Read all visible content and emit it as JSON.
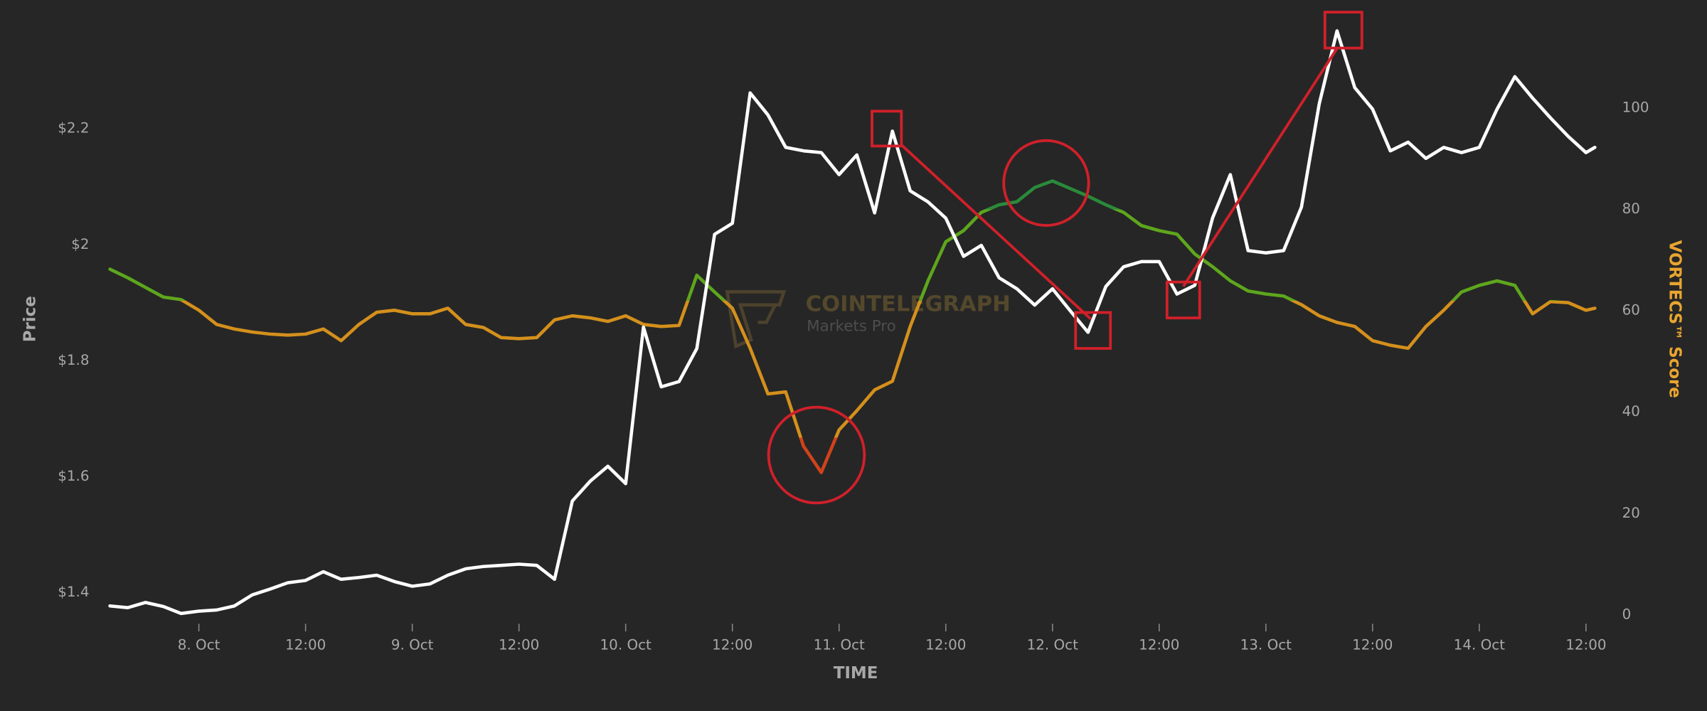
{
  "chart_data": {
    "type": "line",
    "xlabel": "TIME",
    "ylabel": "Price",
    "y2label": "VORTECS™ Score",
    "watermark": {
      "title": "COINTELEGRAPH",
      "subtitle": "Markets Pro"
    },
    "xlim": [
      14,
      181
    ],
    "xticks": [
      {
        "value": 24,
        "label": "8. Oct"
      },
      {
        "value": 36,
        "label": "12:00"
      },
      {
        "value": 48,
        "label": "9. Oct"
      },
      {
        "value": 60,
        "label": "12:00"
      },
      {
        "value": 72,
        "label": "10. Oct"
      },
      {
        "value": 84,
        "label": "12:00"
      },
      {
        "value": 96,
        "label": "11. Oct"
      },
      {
        "value": 108,
        "label": "12:00"
      },
      {
        "value": 120,
        "label": "12. Oct"
      },
      {
        "value": 132,
        "label": "12:00"
      },
      {
        "value": 144,
        "label": "13. Oct"
      },
      {
        "value": 156,
        "label": "12:00"
      },
      {
        "value": 168,
        "label": "14. Oct"
      },
      {
        "value": 180,
        "label": "12:00"
      }
    ],
    "ylim": [
      1.35,
      2.39
    ],
    "yticks": [
      {
        "value": 1.4,
        "label": "$1.4"
      },
      {
        "value": 1.6,
        "label": "$1.6"
      },
      {
        "value": 1.8,
        "label": "$1.8"
      },
      {
        "value": 2.0,
        "label": "$2"
      },
      {
        "value": 2.2,
        "label": "$2.2"
      }
    ],
    "y2lim": [
      -1.3,
      117.6
    ],
    "y2ticks": [
      0,
      20,
      40,
      60,
      80,
      100
    ],
    "y2label_color": "#e8a530",
    "grid": false,
    "x": [
      14,
      16,
      18,
      20,
      22,
      24,
      26,
      28,
      30,
      32,
      34,
      36,
      38,
      40,
      42,
      44,
      46,
      48,
      50,
      52,
      54,
      56,
      58,
      60,
      62,
      64,
      66,
      68,
      70,
      72,
      74,
      76,
      78,
      80,
      82,
      84,
      86,
      88,
      90,
      92,
      94,
      96,
      98,
      100,
      102,
      104,
      106,
      108,
      110,
      112,
      114,
      116,
      118,
      120,
      122,
      124,
      126,
      128,
      130,
      132,
      134,
      136,
      138,
      140,
      142,
      144,
      146,
      148,
      150,
      152,
      154,
      156,
      158,
      160,
      162,
      164,
      166,
      168,
      170,
      172,
      174,
      176,
      178,
      180,
      181
    ],
    "series": [
      {
        "name": "Price",
        "color": "#ffffff",
        "axis": "y",
        "values": [
          1.377,
          1.374,
          1.383,
          1.376,
          1.364,
          1.368,
          1.37,
          1.377,
          1.396,
          1.406,
          1.417,
          1.421,
          1.436,
          1.423,
          1.426,
          1.43,
          1.419,
          1.411,
          1.415,
          1.43,
          1.441,
          1.445,
          1.447,
          1.449,
          1.447,
          1.423,
          1.558,
          1.592,
          1.618,
          1.588,
          1.858,
          1.755,
          1.764,
          1.821,
          2.018,
          2.037,
          2.262,
          2.224,
          2.168,
          2.162,
          2.159,
          2.121,
          2.155,
          2.055,
          2.196,
          2.093,
          2.074,
          2.046,
          1.98,
          1.999,
          1.943,
          1.924,
          1.896,
          1.924,
          1.886,
          1.849,
          1.928,
          1.962,
          1.971,
          1.971,
          1.915,
          1.93,
          2.046,
          2.121,
          1.99,
          1.986,
          1.99,
          2.065,
          2.243,
          2.369,
          2.271,
          2.234,
          2.162,
          2.177,
          2.149,
          2.168,
          2.159,
          2.168,
          2.234,
          2.29,
          2.253,
          2.219,
          2.187,
          2.159,
          2.168
        ]
      },
      {
        "name": "VORTECS™ Score",
        "axis": "y2",
        "zones": [
          {
            "upto": 35,
            "color": "#d0421b"
          },
          {
            "upto": 62,
            "color": "#d4901c"
          },
          {
            "upto": 80,
            "color": "#5ea61d"
          },
          {
            "color": "#2a8a3a"
          }
        ],
        "values": [
          68.2,
          66.5,
          64.6,
          62.7,
          62.2,
          60.1,
          57.3,
          56.4,
          55.8,
          55.4,
          55.2,
          55.4,
          56.4,
          54.1,
          57.3,
          59.7,
          60.1,
          59.4,
          59.4,
          60.5,
          57.3,
          56.7,
          54.7,
          54.5,
          54.7,
          58.2,
          59.0,
          58.6,
          57.9,
          59.0,
          57.3,
          56.9,
          57.1,
          67.0,
          63.7,
          60.5,
          52.6,
          43.6,
          44.0,
          33.3,
          28.1,
          36.5,
          40.3,
          44.4,
          46.1,
          56.9,
          65.9,
          73.6,
          75.8,
          79.4,
          80.9,
          81.5,
          84.3,
          85.6,
          84.1,
          82.6,
          80.9,
          79.4,
          76.8,
          75.8,
          75.1,
          71.2,
          68.7,
          65.9,
          63.9,
          63.3,
          62.9,
          61.2,
          59.0,
          57.7,
          56.9,
          54.1,
          53.2,
          52.6,
          56.9,
          60.1,
          63.7,
          65.0,
          65.9,
          65.0,
          59.4,
          61.8,
          61.6,
          60.1,
          60.5
        ]
      }
    ]
  }
}
